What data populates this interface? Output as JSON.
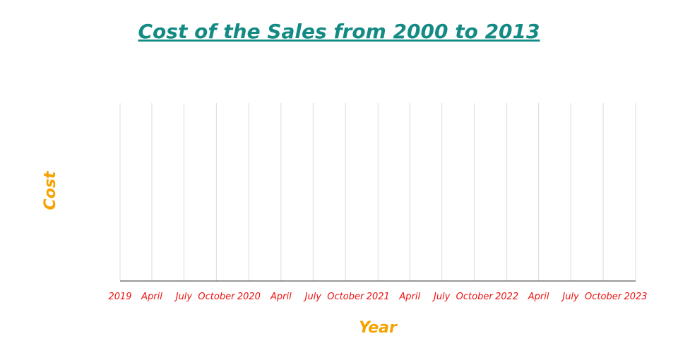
{
  "chart_data": {
    "type": "line",
    "title": "Cost of the Sales from 2000 to 2013",
    "xlabel": "Year",
    "ylabel": "Cost",
    "x_tick_labels": [
      "2019",
      "April",
      "July",
      "October",
      "2020",
      "April",
      "July",
      "October",
      "2021",
      "April",
      "July",
      "October",
      "2022",
      "April",
      "July",
      "October",
      "2023"
    ],
    "xlim": [
      "2019-01-01",
      "2023-01-01"
    ],
    "x_ticks": [
      "2019-01-01",
      "2019-04-01",
      "2019-07-01",
      "2019-10-01",
      "2020-01-01",
      "2020-04-01",
      "2020-07-01",
      "2020-10-01",
      "2021-01-01",
      "2021-04-01",
      "2021-07-01",
      "2021-10-01",
      "2022-01-01",
      "2022-04-01",
      "2022-07-01",
      "2022-10-01",
      "2023-01-01"
    ],
    "series": [],
    "grid": "vertical",
    "colors": {
      "title": "#138a84",
      "axis_title": "#f5a300",
      "tick_label": "#ee1111",
      "gridline": "#dcdcdc",
      "axis_line": "#333333"
    }
  }
}
